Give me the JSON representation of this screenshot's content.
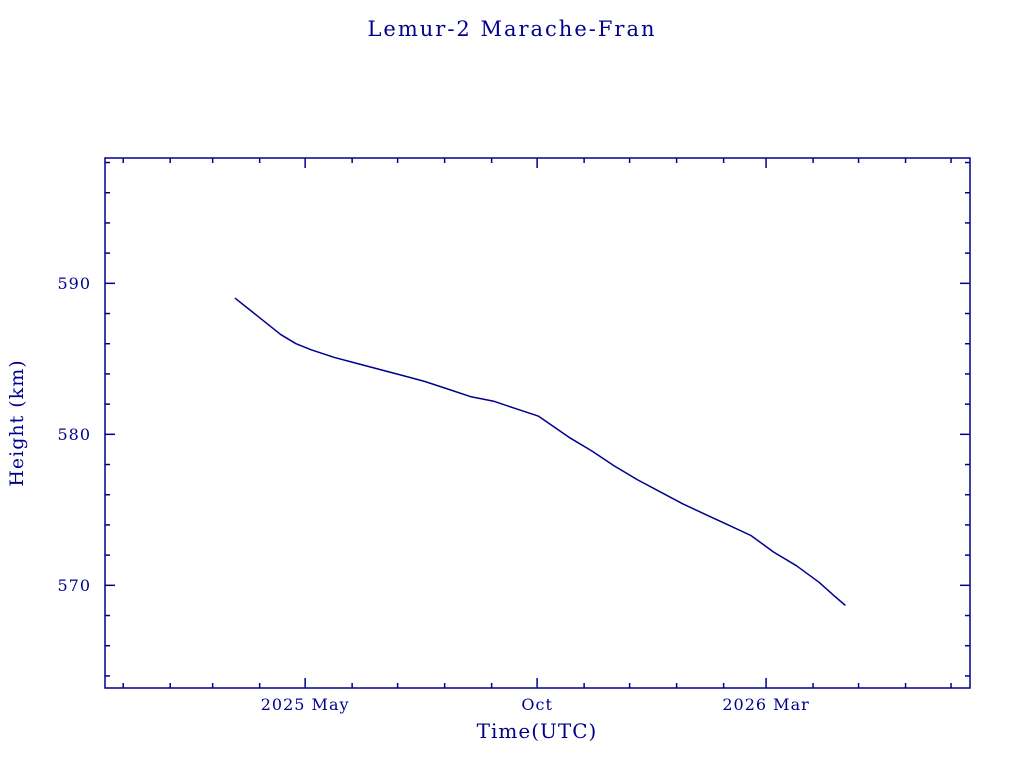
{
  "page": {
    "background": "#ffffff",
    "accent_color": "#00008b"
  },
  "chart_data": {
    "type": "line",
    "title": "Lemur-2 Marache-Fran",
    "xlabel": "Time(UTC)",
    "ylabel": "Height (km)",
    "line_color": "#00008b",
    "axis_color": "#00008b",
    "grid": false,
    "legend": "none",
    "ylim": [
      563.2,
      598.3
    ],
    "xlim_days": [
      -12,
      558.5
    ],
    "x_epoch": "2025-01-01",
    "x_ticks": [
      {
        "day": 120,
        "label": "2025 May"
      },
      {
        "day": 273,
        "label": "Oct"
      },
      {
        "day": 424,
        "label": "2026 Mar"
      }
    ],
    "x_minor_days": [
      0,
      31,
      59,
      90,
      151,
      181,
      212,
      243,
      304,
      334,
      365,
      396,
      455,
      485,
      516,
      546
    ],
    "y_ticks": [
      {
        "value": 570,
        "label": "570"
      },
      {
        "value": 580,
        "label": "580"
      },
      {
        "value": 590,
        "label": "590"
      }
    ],
    "y_minor_values": [
      564,
      566,
      568,
      572,
      574,
      576,
      578,
      582,
      584,
      586,
      588,
      592,
      594,
      596,
      598
    ],
    "series": [
      {
        "name": "height",
        "points": [
          {
            "date": "2025-03-16",
            "day": 74,
            "height_km": 589.0
          },
          {
            "date": "2025-03-26",
            "day": 84,
            "height_km": 588.2
          },
          {
            "date": "2025-04-05",
            "day": 94,
            "height_km": 587.4
          },
          {
            "date": "2025-04-15",
            "day": 104,
            "height_km": 586.6
          },
          {
            "date": "2025-04-25",
            "day": 114,
            "height_km": 586.0
          },
          {
            "date": "2025-05-05",
            "day": 124,
            "height_km": 585.6
          },
          {
            "date": "2025-05-20",
            "day": 139,
            "height_km": 585.1
          },
          {
            "date": "2025-06-04",
            "day": 154,
            "height_km": 584.7
          },
          {
            "date": "2025-06-19",
            "day": 169,
            "height_km": 584.3
          },
          {
            "date": "2025-07-04",
            "day": 184,
            "height_km": 583.9
          },
          {
            "date": "2025-07-19",
            "day": 199,
            "height_km": 583.5
          },
          {
            "date": "2025-08-03",
            "day": 214,
            "height_km": 583.0
          },
          {
            "date": "2025-08-18",
            "day": 229,
            "height_km": 582.5
          },
          {
            "date": "2025-09-02",
            "day": 244,
            "height_km": 582.2
          },
          {
            "date": "2025-09-17",
            "day": 259,
            "height_km": 581.7
          },
          {
            "date": "2025-10-02",
            "day": 274,
            "height_km": 581.2
          },
          {
            "date": "2025-10-12",
            "day": 284,
            "height_km": 580.5
          },
          {
            "date": "2025-10-22",
            "day": 294,
            "height_km": 579.8
          },
          {
            "date": "2025-11-06",
            "day": 309,
            "height_km": 578.9
          },
          {
            "date": "2025-11-21",
            "day": 324,
            "height_km": 577.9
          },
          {
            "date": "2025-12-06",
            "day": 339,
            "height_km": 577.0
          },
          {
            "date": "2025-12-21",
            "day": 354,
            "height_km": 576.2
          },
          {
            "date": "2026-01-05",
            "day": 369,
            "height_km": 575.4
          },
          {
            "date": "2026-01-20",
            "day": 384,
            "height_km": 574.7
          },
          {
            "date": "2026-02-04",
            "day": 399,
            "height_km": 574.0
          },
          {
            "date": "2026-02-19",
            "day": 414,
            "height_km": 573.3
          },
          {
            "date": "2026-03-06",
            "day": 429,
            "height_km": 572.2
          },
          {
            "date": "2026-03-21",
            "day": 444,
            "height_km": 571.3
          },
          {
            "date": "2026-04-05",
            "day": 459,
            "height_km": 570.2
          },
          {
            "date": "2026-04-15",
            "day": 469,
            "height_km": 569.3
          },
          {
            "date": "2026-04-22",
            "day": 476,
            "height_km": 568.7
          }
        ]
      }
    ]
  }
}
